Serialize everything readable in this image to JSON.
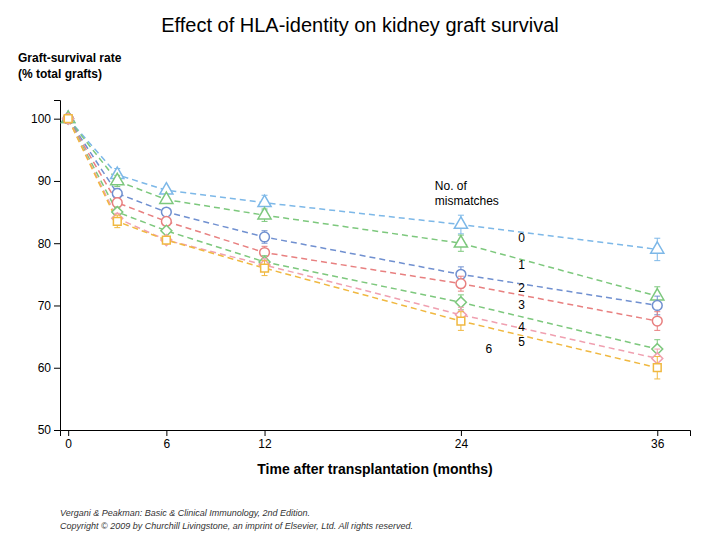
{
  "chart_data": {
    "type": "line",
    "title": "Effect of HLA-identity on kidney graft survival",
    "ylabel": [
      "Graft-survival rate",
      "(% total grafts)"
    ],
    "xlabel": "Time after transplantation (months)",
    "footnotes": [
      "Vergani & Peakman: Basic & Clinical Immunology, 2nd Edition.",
      "Copyright © 2009 by Churchill Livingstone, an imprint of Elsevier, Ltd. All rights reserved."
    ],
    "x": [
      0,
      3,
      6,
      12,
      24,
      36
    ],
    "xlim": [
      -0.5,
      38
    ],
    "ylim": [
      50,
      103
    ],
    "xticks": [
      0,
      6,
      12,
      24,
      36
    ],
    "yticks": [
      50,
      60,
      70,
      80,
      90,
      100
    ],
    "grid": false,
    "annotation_title": "No. of\nmismatches",
    "annotations": [
      {
        "text": "0",
        "x": 27.5,
        "y": 80.8
      },
      {
        "text": "1",
        "x": 27.5,
        "y": 76.5
      },
      {
        "text": "2",
        "x": 27.5,
        "y": 72.8
      },
      {
        "text": "3",
        "x": 27.5,
        "y": 70.0
      },
      {
        "text": "4",
        "x": 27.5,
        "y": 66.5
      },
      {
        "text": "5",
        "x": 27.5,
        "y": 64.2
      },
      {
        "text": "6",
        "x": 25.5,
        "y": 63.0
      }
    ],
    "series": [
      {
        "color": "#7DB8E8",
        "marker": "triangle",
        "line_style": "dashed",
        "values": [
          100,
          91,
          88.5,
          86.5,
          83,
          79
        ],
        "errors": [
          0,
          1.0,
          0,
          1.2,
          1.5,
          1.8
        ]
      },
      {
        "color": "#7DC87D",
        "marker": "triangle",
        "line_style": "dashed",
        "values": [
          100,
          90,
          87,
          84.5,
          80,
          71.5
        ],
        "errors": [
          0,
          0.9,
          0,
          1.0,
          1.3,
          1.5
        ]
      },
      {
        "color": "#7090D0",
        "marker": "circle",
        "line_style": "dashed",
        "values": [
          100,
          88,
          85,
          81,
          75,
          70
        ],
        "errors": [
          0,
          0.8,
          0,
          1.0,
          1.2,
          1.5
        ]
      },
      {
        "color": "#E88080",
        "marker": "circle",
        "line_style": "dashed",
        "values": [
          100,
          86.5,
          83.5,
          78.5,
          73.5,
          67.5
        ],
        "errors": [
          0,
          0.8,
          0,
          1.0,
          1.2,
          1.5
        ]
      },
      {
        "color": "#7DC87D",
        "marker": "diamond",
        "line_style": "dashed",
        "values": [
          100,
          85,
          82,
          77,
          70.5,
          63
        ],
        "errors": [
          0,
          0.8,
          0,
          1.0,
          1.2,
          1.5
        ]
      },
      {
        "color": "#F0A0B0",
        "marker": "diamond",
        "line_style": "dashed",
        "values": [
          100,
          84,
          80.5,
          76.5,
          68.5,
          61.5
        ],
        "errors": [
          0,
          0.8,
          0,
          1.0,
          1.2,
          1.5
        ]
      },
      {
        "color": "#F0B840",
        "marker": "square",
        "line_style": "dashed",
        "values": [
          100,
          83.5,
          80.5,
          76,
          67.5,
          60
        ],
        "errors": [
          0,
          1.0,
          0,
          1.2,
          1.5,
          1.8
        ]
      }
    ]
  }
}
